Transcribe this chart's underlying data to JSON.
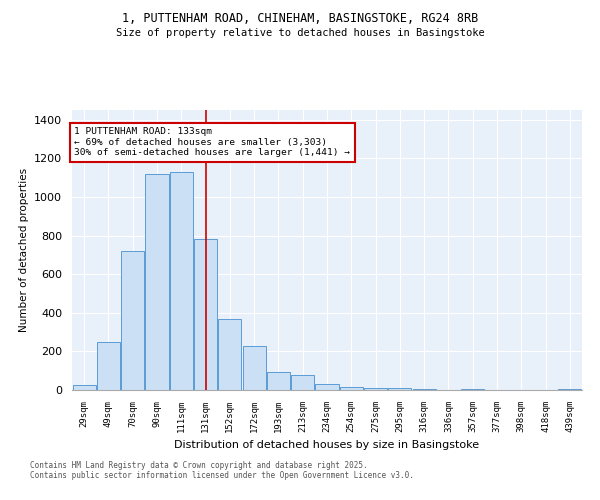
{
  "title_line1": "1, PUTTENHAM ROAD, CHINEHAM, BASINGSTOKE, RG24 8RB",
  "title_line2": "Size of property relative to detached houses in Basingstoke",
  "xlabel": "Distribution of detached houses by size in Basingstoke",
  "ylabel": "Number of detached properties",
  "categories": [
    "29sqm",
    "49sqm",
    "70sqm",
    "90sqm",
    "111sqm",
    "131sqm",
    "152sqm",
    "172sqm",
    "193sqm",
    "213sqm",
    "234sqm",
    "254sqm",
    "275sqm",
    "295sqm",
    "316sqm",
    "336sqm",
    "357sqm",
    "377sqm",
    "398sqm",
    "418sqm",
    "439sqm"
  ],
  "values": [
    28,
    250,
    720,
    1120,
    1130,
    780,
    370,
    230,
    95,
    80,
    30,
    18,
    12,
    8,
    4,
    2,
    4,
    2,
    0,
    0,
    3
  ],
  "bar_color": "#cce0f5",
  "bar_edge_color": "#5b9bd5",
  "plot_bg_color": "#e8f0fa",
  "grid_color": "#ffffff",
  "background_color": "#ffffff",
  "red_line_x": 5,
  "annotation_text": "1 PUTTENHAM ROAD: 133sqm\n← 69% of detached houses are smaller (3,303)\n30% of semi-detached houses are larger (1,441) →",
  "annotation_box_color": "#ffffff",
  "annotation_box_edge_color": "#cc0000",
  "red_line_color": "#cc0000",
  "footnote_line1": "Contains HM Land Registry data © Crown copyright and database right 2025.",
  "footnote_line2": "Contains public sector information licensed under the Open Government Licence v3.0.",
  "ylim": [
    0,
    1450
  ],
  "yticks": [
    0,
    200,
    400,
    600,
    800,
    1000,
    1200,
    1400
  ]
}
